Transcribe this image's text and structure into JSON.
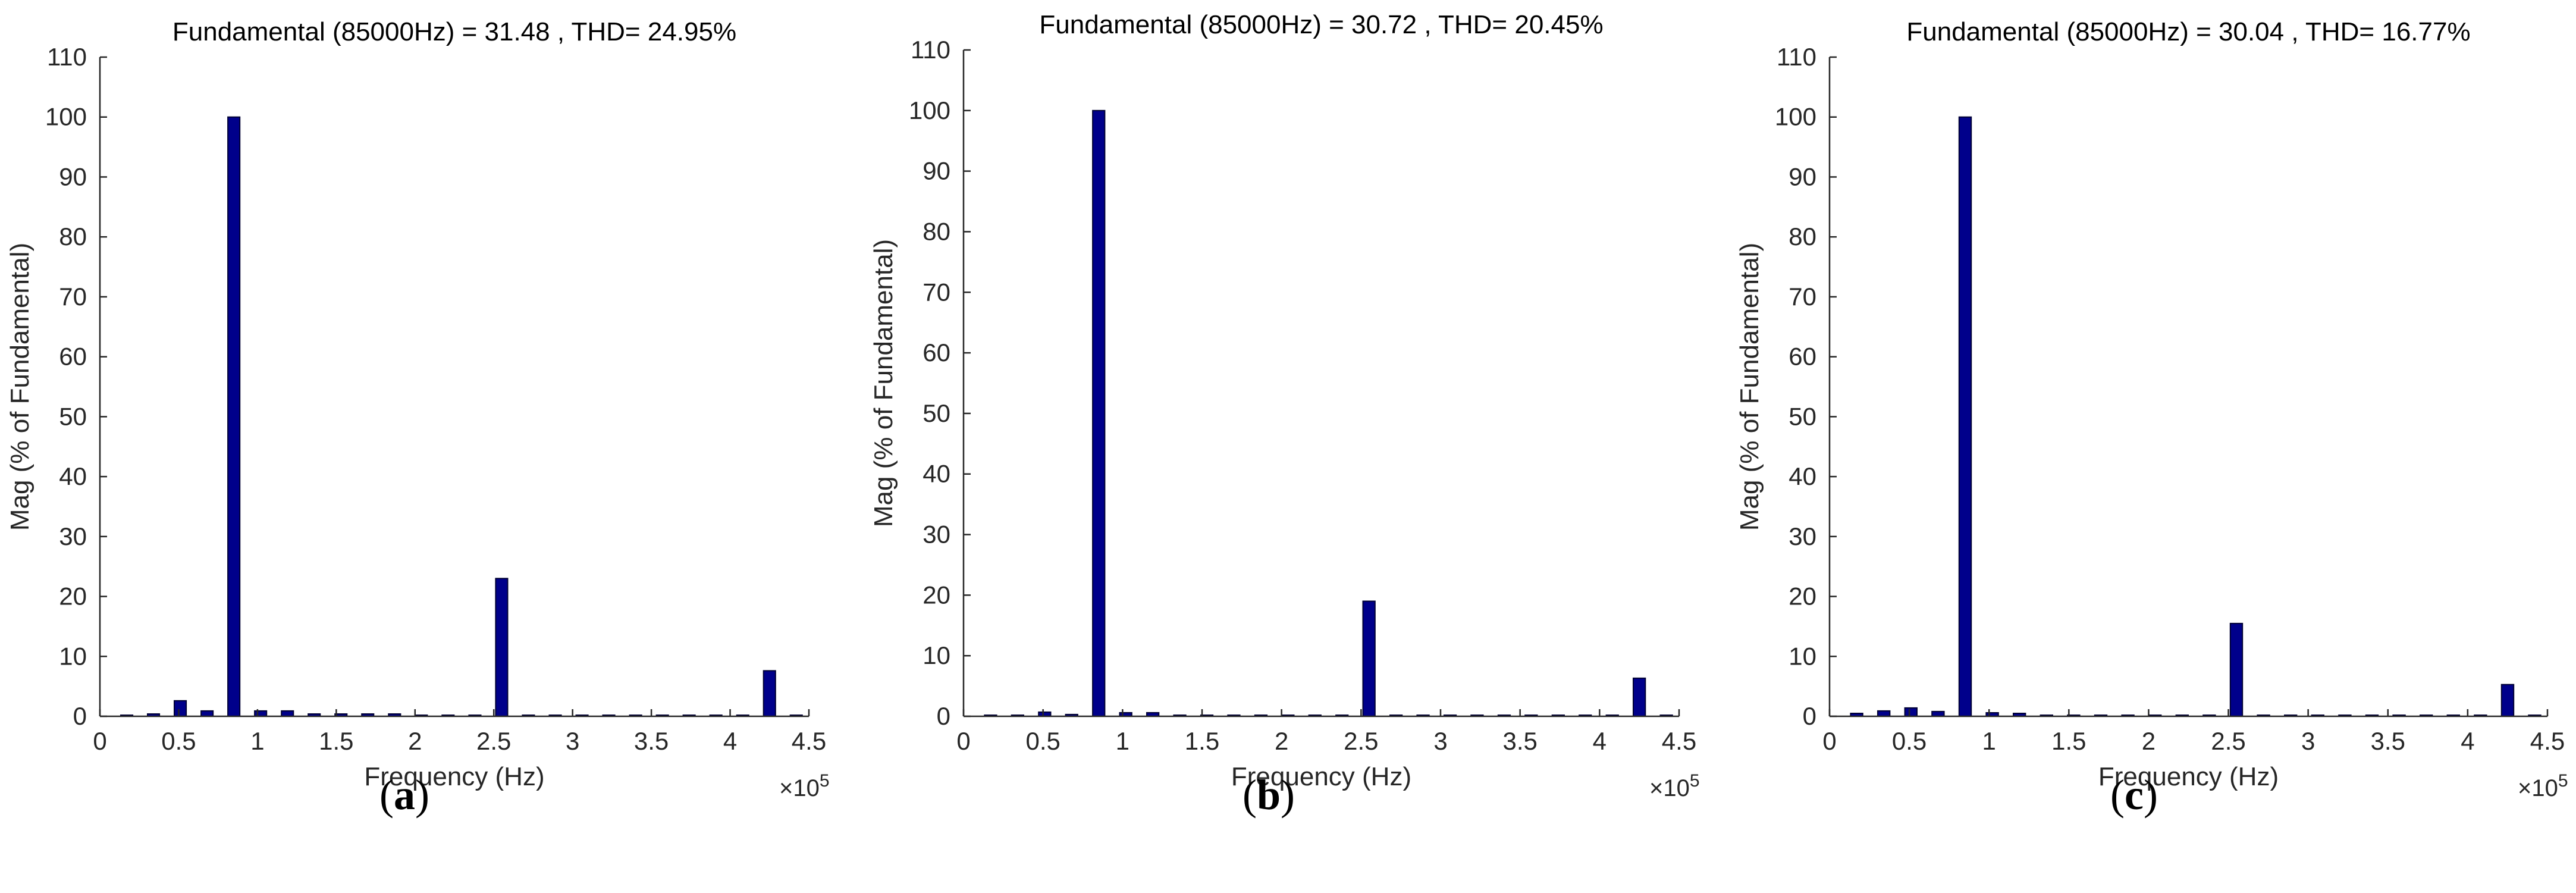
{
  "colors": {
    "bar_fill": "#00008B",
    "bar_edge": "#000033",
    "axis": "#262626",
    "text": "#262626",
    "background": "#ffffff"
  },
  "common": {
    "xlabel": "Frequency (Hz)",
    "ylabel": "Mag (% of Fundamental)",
    "x_exponent_base": "×10",
    "x_exponent_power": "5",
    "x_scale": 100000
  },
  "panels": [
    {
      "open": "(",
      "letter": "a",
      "close": ")"
    },
    {
      "open": "(",
      "letter": "b",
      "close": ")"
    },
    {
      "open": "(",
      "letter": "c",
      "close": ")"
    }
  ],
  "chart_data": [
    {
      "type": "bar",
      "title": "Fundamental (85000Hz) = 31.48 , THD= 24.95%",
      "xlabel": "Frequency (Hz)",
      "ylabel": "Mag (% of Fundamental)",
      "xlim": [
        0,
        450000
      ],
      "ylim": [
        0,
        110
      ],
      "xticks": [
        0,
        50000,
        100000,
        150000,
        200000,
        250000,
        300000,
        350000,
        400000,
        450000
      ],
      "xtick_labels": [
        "0",
        "0.5",
        "1",
        "1.5",
        "2",
        "2.5",
        "3",
        "3.5",
        "4",
        "4.5"
      ],
      "yticks": [
        0,
        10,
        20,
        30,
        40,
        50,
        60,
        70,
        80,
        90,
        100,
        110
      ],
      "x": [
        17000,
        34000,
        51000,
        68000,
        85000,
        102000,
        119000,
        136000,
        153000,
        170000,
        187000,
        204000,
        221000,
        238000,
        255000,
        272000,
        289000,
        306000,
        323000,
        340000,
        357000,
        374000,
        391000,
        408000,
        425000,
        442000
      ],
      "values": [
        0.2,
        0.4,
        2.6,
        0.9,
        100,
        0.9,
        0.9,
        0.4,
        0.4,
        0.4,
        0.4,
        0.2,
        0.2,
        0.2,
        23,
        0.2,
        0.2,
        0.2,
        0.2,
        0.2,
        0.2,
        0.2,
        0.2,
        0.2,
        7.6,
        0.2
      ]
    },
    {
      "type": "bar",
      "title": "Fundamental (85000Hz) = 30.72 , THD= 20.45%",
      "xlabel": "Frequency (Hz)",
      "ylabel": "Mag (% of Fundamental)",
      "xlim": [
        0,
        450000
      ],
      "ylim": [
        0,
        110
      ],
      "xticks": [
        0,
        50000,
        100000,
        150000,
        200000,
        250000,
        300000,
        350000,
        400000,
        450000
      ],
      "xtick_labels": [
        "0",
        "0.5",
        "1",
        "1.5",
        "2",
        "2.5",
        "3",
        "3.5",
        "4",
        "4.5"
      ],
      "yticks": [
        0,
        10,
        20,
        30,
        40,
        50,
        60,
        70,
        80,
        90,
        100,
        110
      ],
      "x": [
        17000,
        34000,
        51000,
        68000,
        85000,
        102000,
        119000,
        136000,
        153000,
        170000,
        187000,
        204000,
        221000,
        238000,
        255000,
        272000,
        289000,
        306000,
        323000,
        340000,
        357000,
        374000,
        391000,
        408000,
        425000,
        442000
      ],
      "values": [
        0.2,
        0.2,
        0.7,
        0.3,
        100,
        0.6,
        0.6,
        0.2,
        0.2,
        0.2,
        0.2,
        0.2,
        0.2,
        0.2,
        19,
        0.2,
        0.1,
        0.2,
        0.2,
        0.2,
        0.2,
        0.2,
        0.1,
        0.2,
        6.3,
        0.2
      ]
    },
    {
      "type": "bar",
      "title": "Fundamental (85000Hz) = 30.04 , THD= 16.77%",
      "xlabel": "Frequency (Hz)",
      "ylabel": "Mag (% of Fundamental)",
      "xlim": [
        0,
        450000
      ],
      "ylim": [
        0,
        110
      ],
      "xticks": [
        0,
        50000,
        100000,
        150000,
        200000,
        250000,
        300000,
        350000,
        400000,
        450000
      ],
      "xtick_labels": [
        "0",
        "0.5",
        "1",
        "1.5",
        "2",
        "2.5",
        "3",
        "3.5",
        "4",
        "4.5"
      ],
      "yticks": [
        0,
        10,
        20,
        30,
        40,
        50,
        60,
        70,
        80,
        90,
        100,
        110
      ],
      "x": [
        17000,
        34000,
        51000,
        68000,
        85000,
        102000,
        119000,
        136000,
        153000,
        170000,
        187000,
        204000,
        221000,
        238000,
        255000,
        272000,
        289000,
        306000,
        323000,
        340000,
        357000,
        374000,
        391000,
        408000,
        425000,
        442000
      ],
      "values": [
        0.5,
        0.9,
        1.4,
        0.8,
        100,
        0.6,
        0.5,
        0.2,
        0.2,
        0.2,
        0.2,
        0.2,
        0.1,
        0.2,
        15.5,
        0.2,
        0.1,
        0.2,
        0.2,
        0.2,
        0.2,
        0.2,
        0.1,
        0.2,
        5.3,
        0.2
      ]
    }
  ]
}
